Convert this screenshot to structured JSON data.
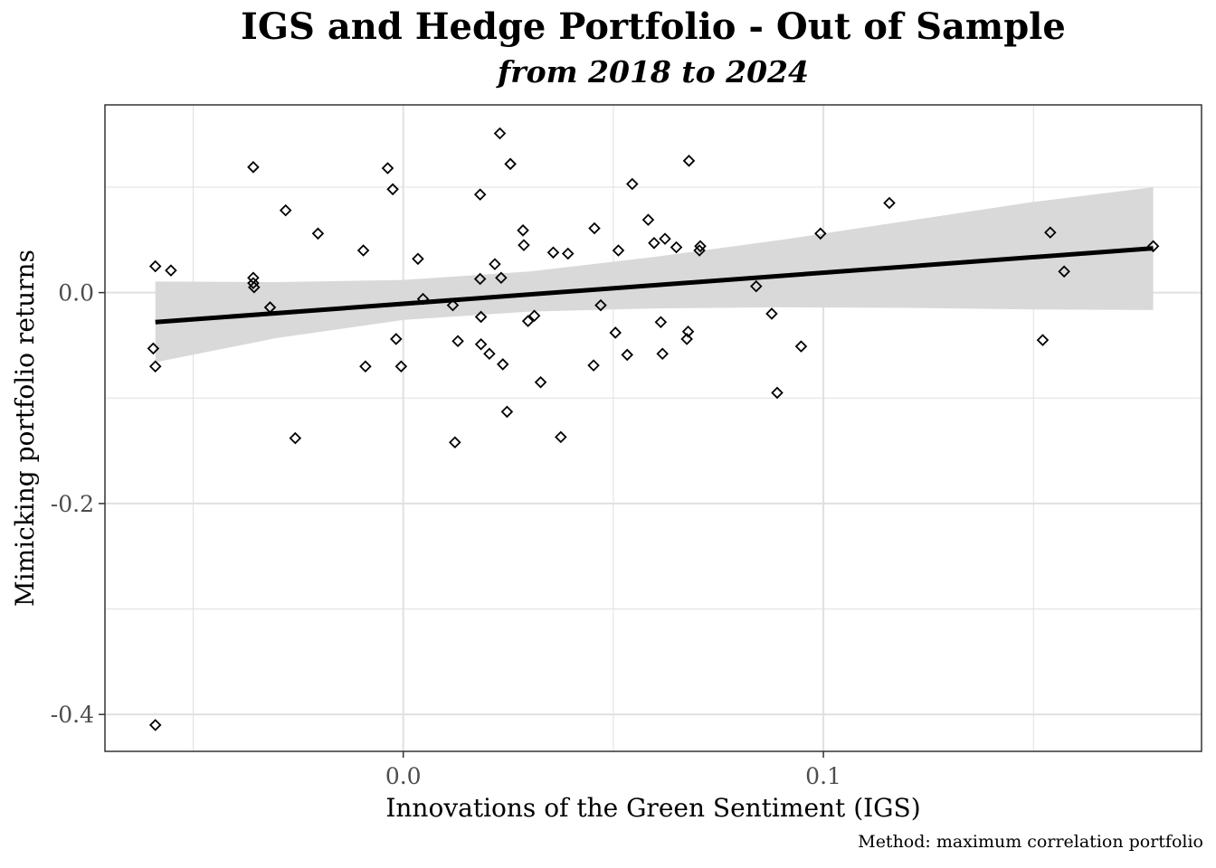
{
  "chart_data": {
    "type": "scatter",
    "title": "IGS and Hedge Portfolio - Out of Sample",
    "subtitle": "from 2018 to 2024",
    "caption": "Method: maximum correlation portfolio",
    "xlabel": "Innovations of the Green Sentiment (IGS)",
    "ylabel": "Mimicking portfolio returns",
    "xlim": [
      -0.071,
      0.19
    ],
    "ylim": [
      -0.435,
      0.178
    ],
    "x_ticks": [
      0.0,
      0.1
    ],
    "x_tick_labels": [
      "0.0",
      "0.1"
    ],
    "y_ticks": [
      0.0,
      -0.2,
      -0.4
    ],
    "y_tick_labels": [
      "0.0",
      "-0.2",
      "-0.4"
    ],
    "x_minor_ticks": [
      -0.05,
      0.05,
      0.15
    ],
    "y_minor_ticks": [
      0.1,
      -0.1,
      -0.3
    ],
    "grid": true,
    "marker": "open-diamond",
    "colors": {
      "points": "#000000",
      "fit_line": "#000000",
      "ribbon": "#d9d9d9",
      "grid": "#e0e0e0"
    },
    "points": [
      {
        "x": -0.059,
        "y": 0.025
      },
      {
        "x": -0.0553,
        "y": 0.021
      },
      {
        "x": -0.0595,
        "y": -0.053
      },
      {
        "x": -0.059,
        "y": -0.07
      },
      {
        "x": -0.059,
        "y": -0.41
      },
      {
        "x": -0.0357,
        "y": 0.119
      },
      {
        "x": -0.0357,
        "y": 0.014
      },
      {
        "x": -0.0357,
        "y": 0.009
      },
      {
        "x": -0.0355,
        "y": 0.005
      },
      {
        "x": -0.0317,
        "y": -0.014
      },
      {
        "x": -0.028,
        "y": 0.078
      },
      {
        "x": -0.0257,
        "y": -0.138
      },
      {
        "x": -0.0203,
        "y": 0.056
      },
      {
        "x": -0.0095,
        "y": 0.04
      },
      {
        "x": -0.009,
        "y": -0.07
      },
      {
        "x": -0.0037,
        "y": 0.118
      },
      {
        "x": -0.0025,
        "y": 0.098
      },
      {
        "x": -0.0017,
        "y": -0.044
      },
      {
        "x": -0.0005,
        "y": -0.07
      },
      {
        "x": 0.0035,
        "y": 0.032
      },
      {
        "x": 0.0047,
        "y": -0.006
      },
      {
        "x": 0.0118,
        "y": -0.012
      },
      {
        "x": 0.0123,
        "y": -0.142
      },
      {
        "x": 0.013,
        "y": -0.046
      },
      {
        "x": 0.0183,
        "y": 0.093
      },
      {
        "x": 0.0183,
        "y": 0.013
      },
      {
        "x": 0.0185,
        "y": -0.023
      },
      {
        "x": 0.0185,
        "y": -0.049
      },
      {
        "x": 0.0205,
        "y": -0.058
      },
      {
        "x": 0.0218,
        "y": 0.027
      },
      {
        "x": 0.023,
        "y": 0.151
      },
      {
        "x": 0.0233,
        "y": 0.014
      },
      {
        "x": 0.0237,
        "y": -0.068
      },
      {
        "x": 0.0247,
        "y": -0.113
      },
      {
        "x": 0.0255,
        "y": 0.122
      },
      {
        "x": 0.0285,
        "y": 0.059
      },
      {
        "x": 0.0287,
        "y": 0.045
      },
      {
        "x": 0.0297,
        "y": -0.027
      },
      {
        "x": 0.0312,
        "y": -0.022
      },
      {
        "x": 0.0327,
        "y": -0.085
      },
      {
        "x": 0.0357,
        "y": 0.038
      },
      {
        "x": 0.0375,
        "y": -0.137
      },
      {
        "x": 0.0392,
        "y": 0.037
      },
      {
        "x": 0.0453,
        "y": -0.069
      },
      {
        "x": 0.0455,
        "y": 0.061
      },
      {
        "x": 0.047,
        "y": -0.012
      },
      {
        "x": 0.0505,
        "y": -0.038
      },
      {
        "x": 0.0512,
        "y": 0.04
      },
      {
        "x": 0.0533,
        "y": -0.059
      },
      {
        "x": 0.0545,
        "y": 0.103
      },
      {
        "x": 0.0583,
        "y": 0.069
      },
      {
        "x": 0.0597,
        "y": 0.047
      },
      {
        "x": 0.0613,
        "y": -0.028
      },
      {
        "x": 0.0617,
        "y": -0.058
      },
      {
        "x": 0.0623,
        "y": 0.051
      },
      {
        "x": 0.065,
        "y": 0.043
      },
      {
        "x": 0.0675,
        "y": -0.044
      },
      {
        "x": 0.0678,
        "y": -0.037
      },
      {
        "x": 0.068,
        "y": 0.125
      },
      {
        "x": 0.0705,
        "y": 0.04
      },
      {
        "x": 0.0707,
        "y": 0.044
      },
      {
        "x": 0.084,
        "y": 0.006
      },
      {
        "x": 0.0877,
        "y": -0.02
      },
      {
        "x": 0.089,
        "y": -0.095
      },
      {
        "x": 0.0947,
        "y": -0.051
      },
      {
        "x": 0.0993,
        "y": 0.056
      },
      {
        "x": 0.1157,
        "y": 0.085
      },
      {
        "x": 0.1522,
        "y": -0.045
      },
      {
        "x": 0.154,
        "y": 0.057
      },
      {
        "x": 0.1573,
        "y": 0.02
      },
      {
        "x": 0.1785,
        "y": 0.044
      }
    ],
    "fit_line": {
      "x": [
        -0.059,
        0.1785
      ],
      "y": [
        -0.028,
        0.042
      ]
    },
    "confidence_band": {
      "x": [
        -0.059,
        -0.03,
        0.0,
        0.03,
        0.06,
        0.09,
        0.12,
        0.15,
        0.1785
      ],
      "lower": [
        -0.066,
        -0.043,
        -0.026,
        -0.018,
        -0.015,
        -0.014,
        -0.0145,
        -0.016,
        -0.0165
      ],
      "upper": [
        0.0105,
        0.01,
        0.012,
        0.02,
        0.034,
        0.05,
        0.068,
        0.086,
        0.1
      ]
    }
  }
}
